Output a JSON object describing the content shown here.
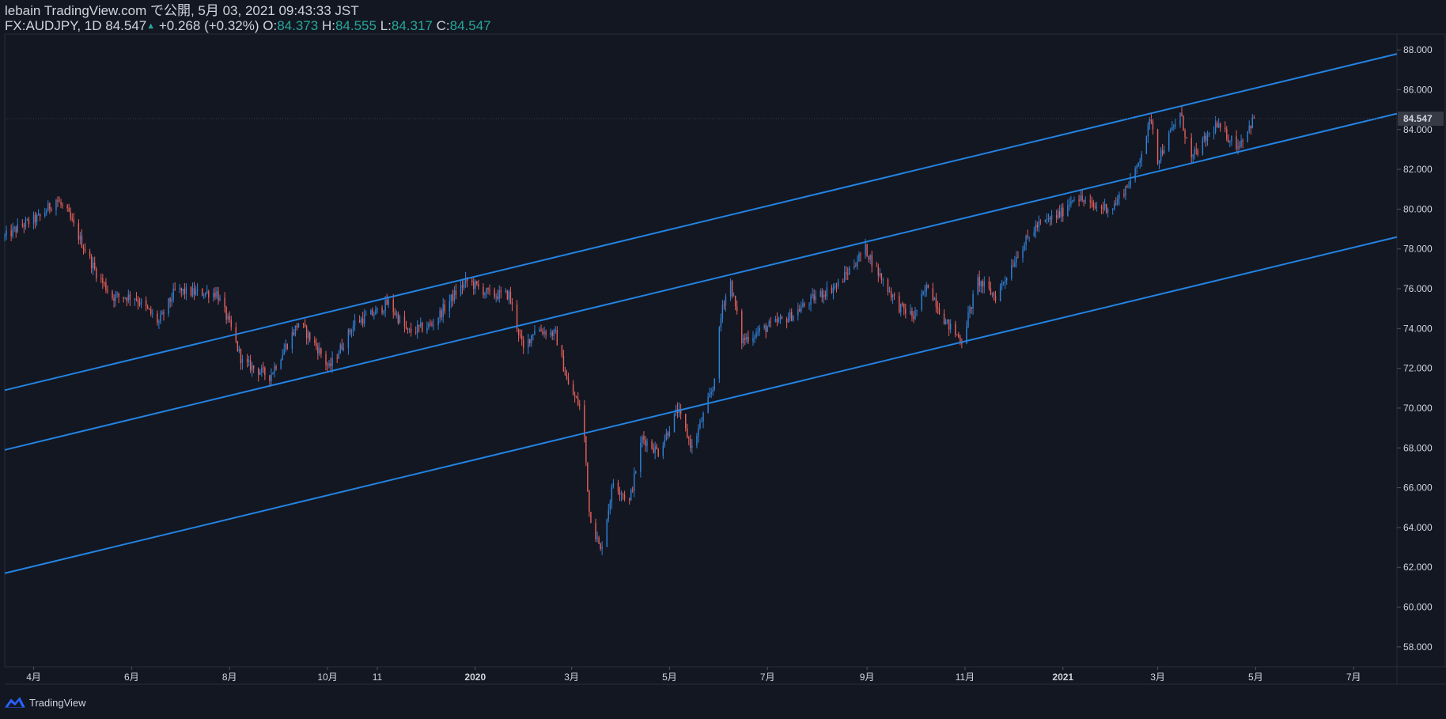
{
  "header": {
    "publish_line": "lebain TradingView.com で公開, 5月 03, 2021 09:43:33 JST",
    "symbol": "FX:AUDJPY, 1D",
    "last": "84.547",
    "change": "+0.268 (+0.32%)",
    "o_label": "O:",
    "o_val": "84.373",
    "h_label": "H:",
    "h_val": "84.555",
    "l_label": "L:",
    "l_val": "84.317",
    "c_label": "C:",
    "c_val": "84.547"
  },
  "footer": {
    "brand": "TradingView",
    "logo_icon": "tradingview-logo-icon"
  },
  "colors": {
    "background": "#131722",
    "up": "#2f81d6",
    "down": "#e45f5a",
    "channel": "#2383e2",
    "price_badge": "#363a45"
  },
  "chart_data": {
    "type": "candlestick",
    "symbol": "FX:AUDJPY",
    "interval": "1D",
    "ylim": [
      57.0,
      88.8
    ],
    "yticks": [
      58,
      60,
      62,
      64,
      66,
      68,
      70,
      72,
      74,
      76,
      78,
      80,
      82,
      84,
      86,
      88
    ],
    "ytick_labels": [
      "58.000",
      "60.000",
      "62.000",
      "64.000",
      "66.000",
      "68.000",
      "70.000",
      "72.000",
      "74.000",
      "76.000",
      "78.000",
      "80.000",
      "82.000",
      "84.000",
      "86.000",
      "88.000"
    ],
    "last_price_label": "84.547",
    "last_price": 84.547,
    "x_start": "2019-03-14",
    "x_end": "2021-07-28",
    "xticks": [
      {
        "label": "4月",
        "date": "2019-04-01"
      },
      {
        "label": "6月",
        "date": "2019-06-01"
      },
      {
        "label": "8月",
        "date": "2019-08-01"
      },
      {
        "label": "10月",
        "date": "2019-10-01"
      },
      {
        "label": "11",
        "date": "2019-11-01"
      },
      {
        "label": "2020",
        "date": "2020-01-01"
      },
      {
        "label": "3月",
        "date": "2020-03-01"
      },
      {
        "label": "5月",
        "date": "2020-05-01"
      },
      {
        "label": "7月",
        "date": "2020-07-01"
      },
      {
        "label": "9月",
        "date": "2020-09-01"
      },
      {
        "label": "11月",
        "date": "2020-11-01"
      },
      {
        "label": "2021",
        "date": "2021-01-01"
      },
      {
        "label": "3月",
        "date": "2021-03-01"
      },
      {
        "label": "5月",
        "date": "2021-05-01"
      },
      {
        "label": "7月",
        "date": "2021-07-01"
      }
    ],
    "price_path": [
      [
        "2019-03-14",
        78.6
      ],
      [
        "2019-03-25",
        79.2
      ],
      [
        "2019-04-05",
        79.6
      ],
      [
        "2019-04-15",
        80.5
      ],
      [
        "2019-04-22",
        79.8
      ],
      [
        "2019-05-01",
        78.3
      ],
      [
        "2019-05-10",
        76.8
      ],
      [
        "2019-05-20",
        75.6
      ],
      [
        "2019-06-03",
        75.6
      ],
      [
        "2019-06-18",
        74.3
      ],
      [
        "2019-06-28",
        75.9
      ],
      [
        "2019-07-10",
        75.8
      ],
      [
        "2019-07-24",
        75.8
      ],
      [
        "2019-08-01",
        74.2
      ],
      [
        "2019-08-09",
        72.3
      ],
      [
        "2019-08-26",
        71.6
      ],
      [
        "2019-09-13",
        74.3
      ],
      [
        "2019-09-25",
        73.0
      ],
      [
        "2019-10-02",
        72.0
      ],
      [
        "2019-10-18",
        74.3
      ],
      [
        "2019-10-31",
        74.8
      ],
      [
        "2019-11-08",
        75.3
      ],
      [
        "2019-11-20",
        73.8
      ],
      [
        "2019-12-05",
        74.2
      ],
      [
        "2019-12-20",
        75.8
      ],
      [
        "2019-12-27",
        76.4
      ],
      [
        "2020-01-10",
        75.7
      ],
      [
        "2020-01-22",
        75.7
      ],
      [
        "2020-01-31",
        72.9
      ],
      [
        "2020-02-07",
        74.0
      ],
      [
        "2020-02-20",
        73.7
      ],
      [
        "2020-02-28",
        71.1
      ],
      [
        "2020-03-06",
        70.1
      ],
      [
        "2020-03-09",
        68.5
      ],
      [
        "2020-03-12",
        64.8
      ],
      [
        "2020-03-19",
        62.8
      ],
      [
        "2020-03-27",
        66.3
      ],
      [
        "2020-04-06",
        65.3
      ],
      [
        "2020-04-14",
        68.5
      ],
      [
        "2020-04-24",
        67.8
      ],
      [
        "2020-05-06",
        69.9
      ],
      [
        "2020-05-15",
        68.0
      ],
      [
        "2020-05-28",
        71.0
      ],
      [
        "2020-06-03",
        75.2
      ],
      [
        "2020-06-08",
        76.3
      ],
      [
        "2020-06-15",
        73.4
      ],
      [
        "2020-06-29",
        74.0
      ],
      [
        "2020-07-15",
        74.6
      ],
      [
        "2020-07-31",
        75.6
      ],
      [
        "2020-08-14",
        76.2
      ],
      [
        "2020-08-31",
        78.0
      ],
      [
        "2020-09-08",
        76.8
      ],
      [
        "2020-09-21",
        75.1
      ],
      [
        "2020-09-30",
        74.6
      ],
      [
        "2020-10-09",
        76.2
      ],
      [
        "2020-10-20",
        74.3
      ],
      [
        "2020-10-30",
        73.4
      ],
      [
        "2020-11-09",
        76.4
      ],
      [
        "2020-11-20",
        75.6
      ],
      [
        "2020-12-04",
        77.8
      ],
      [
        "2020-12-15",
        79.1
      ],
      [
        "2020-12-31",
        79.8
      ],
      [
        "2021-01-08",
        80.7
      ],
      [
        "2021-01-20",
        80.1
      ],
      [
        "2021-02-01",
        80.1
      ],
      [
        "2021-02-15",
        81.8
      ],
      [
        "2021-02-25",
        84.6
      ],
      [
        "2021-03-01",
        82.5
      ],
      [
        "2021-03-15",
        84.8
      ],
      [
        "2021-03-22",
        82.5
      ],
      [
        "2021-04-06",
        84.2
      ],
      [
        "2021-04-20",
        83.2
      ],
      [
        "2021-04-30",
        84.547
      ]
    ],
    "channel_lines": [
      {
        "name": "upper",
        "start": [
          "2019-03-14",
          70.9
        ],
        "end": [
          "2021-07-28",
          87.8
        ]
      },
      {
        "name": "middle",
        "start": [
          "2019-03-14",
          67.9
        ],
        "end": [
          "2021-07-28",
          84.8
        ]
      },
      {
        "name": "lower",
        "start": [
          "2019-03-14",
          61.7
        ],
        "end": [
          "2021-07-28",
          78.6
        ]
      }
    ]
  }
}
